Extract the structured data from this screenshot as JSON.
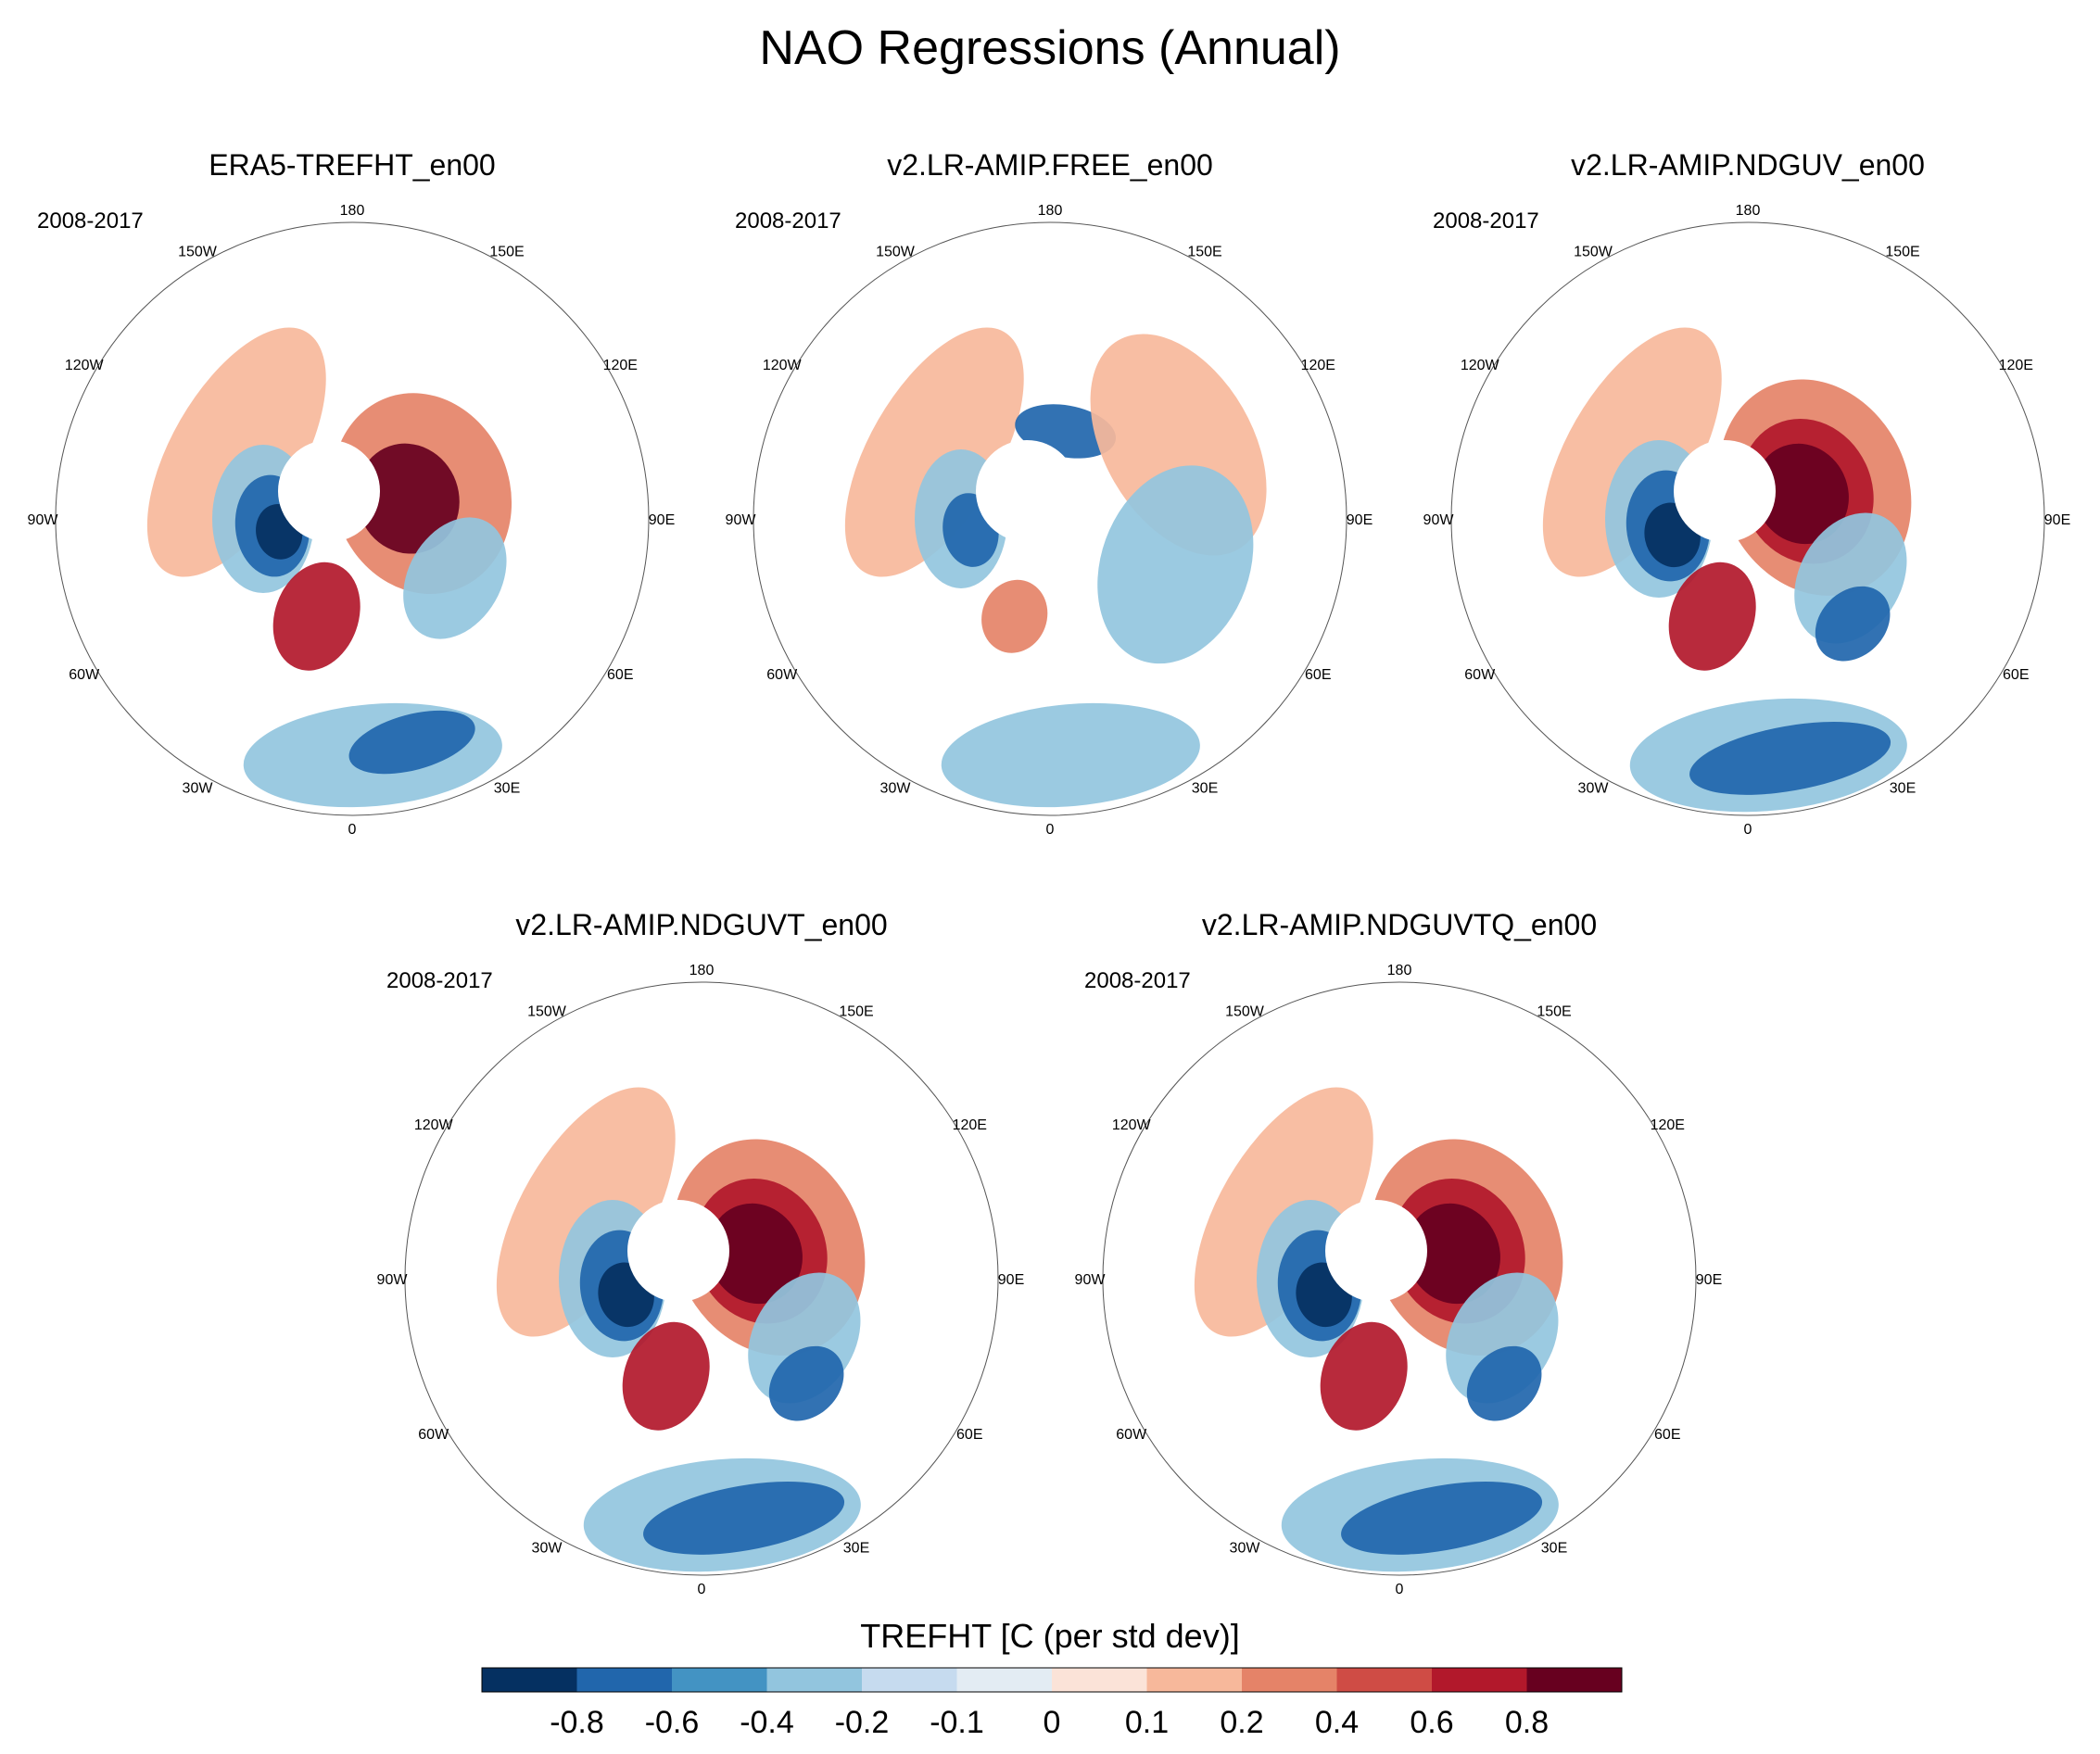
{
  "title": "NAO Regressions (Annual)",
  "panels": [
    {
      "title": "ERA5-TREFHT_en00",
      "period": "2008-2017",
      "style": "era5"
    },
    {
      "title": "v2.LR-AMIP.FREE_en00",
      "period": "2008-2017",
      "style": "free"
    },
    {
      "title": "v2.LR-AMIP.NDGUV_en00",
      "period": "2008-2017",
      "style": "nudged"
    },
    {
      "title": "v2.LR-AMIP.NDGUVT_en00",
      "period": "2008-2017",
      "style": "nudged"
    },
    {
      "title": "v2.LR-AMIP.NDGUVTQ_en00",
      "period": "2008-2017",
      "style": "nudged"
    }
  ],
  "longitude_labels": [
    "180",
    "150E",
    "120E",
    "90E",
    "60E",
    "30E",
    "0",
    "30W",
    "60W",
    "90W",
    "120W",
    "150W"
  ],
  "colorbar": {
    "title": "TREFHT [C (per std dev)]",
    "colors": [
      "#053061",
      "#2166ac",
      "#4393c3",
      "#92c5de",
      "#c6dbef",
      "#e3ecf3",
      "#fbe3d8",
      "#f7b89b",
      "#e58368",
      "#cf4c45",
      "#b2182b",
      "#67001f"
    ],
    "labels": [
      "-0.8",
      "-0.6",
      "-0.4",
      "-0.2",
      "-0.1",
      "0",
      "0.1",
      "0.2",
      "0.4",
      "0.6",
      "0.8"
    ]
  },
  "colors": {
    "neg_strong": "#053061",
    "neg_mid": "#2166ac",
    "neg_light": "#92c5de",
    "neutral": "#e3ecf3",
    "pos_light": "#f7b89b",
    "pos_mid": "#e58368",
    "pos_strong": "#b2182b",
    "pos_deep": "#67001f"
  }
}
